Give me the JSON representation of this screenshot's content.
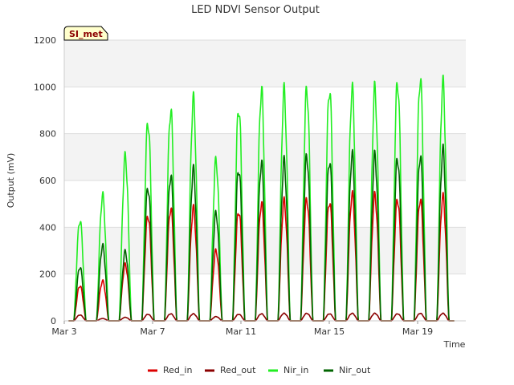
{
  "chart_data": {
    "type": "line",
    "title": "LED NDVI Sensor Output",
    "xlabel": "Time",
    "ylabel": "Output (mV)",
    "site_tag": "SI_met",
    "ylim": [
      0,
      1200
    ],
    "xlim": [
      "2017-03-03",
      "2017-03-21"
    ],
    "x_ticks": [
      "Mar 3",
      "Mar 7",
      "Mar 11",
      "Mar 15",
      "Mar 19"
    ],
    "y_ticks": [
      "0",
      "200",
      "400",
      "600",
      "800",
      "1000",
      "1200"
    ],
    "grid": true,
    "legend_position": "bottom",
    "x_unit": "daily peak (date)",
    "series": [
      {
        "name": "Red_in",
        "color": "#dd0000",
        "daily_peak": [
          {
            "x": "2017-03-03",
            "y": 150
          },
          {
            "x": "2017-03-04",
            "y": 170
          },
          {
            "x": "2017-03-05",
            "y": 240
          },
          {
            "x": "2017-03-06",
            "y": 450
          },
          {
            "x": "2017-03-07",
            "y": 480
          },
          {
            "x": "2017-03-08",
            "y": 480
          },
          {
            "x": "2017-03-09",
            "y": 300
          },
          {
            "x": "2017-03-10",
            "y": 470
          },
          {
            "x": "2017-03-11",
            "y": 500
          },
          {
            "x": "2017-03-12",
            "y": 510
          },
          {
            "x": "2017-03-13",
            "y": 520
          },
          {
            "x": "2017-03-14",
            "y": 510
          },
          {
            "x": "2017-03-15",
            "y": 540
          },
          {
            "x": "2017-03-16",
            "y": 535
          },
          {
            "x": "2017-03-17",
            "y": 520
          },
          {
            "x": "2017-03-18",
            "y": 520
          },
          {
            "x": "2017-03-19",
            "y": 530
          }
        ]
      },
      {
        "name": "Red_out",
        "color": "#8b0000",
        "daily_peak": [
          {
            "x": "2017-03-03",
            "y": 25
          },
          {
            "x": "2017-03-04",
            "y": 10
          },
          {
            "x": "2017-03-05",
            "y": 15
          },
          {
            "x": "2017-03-06",
            "y": 28
          },
          {
            "x": "2017-03-07",
            "y": 30
          },
          {
            "x": "2017-03-08",
            "y": 30
          },
          {
            "x": "2017-03-09",
            "y": 18
          },
          {
            "x": "2017-03-10",
            "y": 28
          },
          {
            "x": "2017-03-11",
            "y": 30
          },
          {
            "x": "2017-03-12",
            "y": 32
          },
          {
            "x": "2017-03-13",
            "y": 32
          },
          {
            "x": "2017-03-14",
            "y": 30
          },
          {
            "x": "2017-03-15",
            "y": 32
          },
          {
            "x": "2017-03-16",
            "y": 32
          },
          {
            "x": "2017-03-17",
            "y": 30
          },
          {
            "x": "2017-03-18",
            "y": 32
          },
          {
            "x": "2017-03-19",
            "y": 32
          }
        ]
      },
      {
        "name": "Nir_in",
        "color": "#22ee22",
        "daily_peak": [
          {
            "x": "2017-03-03",
            "y": 430
          },
          {
            "x": "2017-03-04",
            "y": 535
          },
          {
            "x": "2017-03-05",
            "y": 700
          },
          {
            "x": "2017-03-06",
            "y": 850
          },
          {
            "x": "2017-03-07",
            "y": 900
          },
          {
            "x": "2017-03-08",
            "y": 945
          },
          {
            "x": "2017-03-09",
            "y": 685
          },
          {
            "x": "2017-03-10",
            "y": 910
          },
          {
            "x": "2017-03-11",
            "y": 985
          },
          {
            "x": "2017-03-12",
            "y": 980
          },
          {
            "x": "2017-03-13",
            "y": 990
          },
          {
            "x": "2017-03-14",
            "y": 990
          },
          {
            "x": "2017-03-15",
            "y": 990
          },
          {
            "x": "2017-03-16",
            "y": 990
          },
          {
            "x": "2017-03-17",
            "y": 1020
          },
          {
            "x": "2017-03-18",
            "y": 1035
          },
          {
            "x": "2017-03-19",
            "y": 1015
          }
        ]
      },
      {
        "name": "Nir_out",
        "color": "#006400",
        "daily_peak": [
          {
            "x": "2017-03-03",
            "y": 230
          },
          {
            "x": "2017-03-04",
            "y": 320
          },
          {
            "x": "2017-03-05",
            "y": 295
          },
          {
            "x": "2017-03-06",
            "y": 570
          },
          {
            "x": "2017-03-07",
            "y": 620
          },
          {
            "x": "2017-03-08",
            "y": 645
          },
          {
            "x": "2017-03-09",
            "y": 460
          },
          {
            "x": "2017-03-10",
            "y": 650
          },
          {
            "x": "2017-03-11",
            "y": 675
          },
          {
            "x": "2017-03-12",
            "y": 680
          },
          {
            "x": "2017-03-13",
            "y": 705
          },
          {
            "x": "2017-03-14",
            "y": 685
          },
          {
            "x": "2017-03-15",
            "y": 710
          },
          {
            "x": "2017-03-16",
            "y": 705
          },
          {
            "x": "2017-03-17",
            "y": 695
          },
          {
            "x": "2017-03-18",
            "y": 705
          },
          {
            "x": "2017-03-19",
            "y": 730
          }
        ]
      }
    ]
  }
}
